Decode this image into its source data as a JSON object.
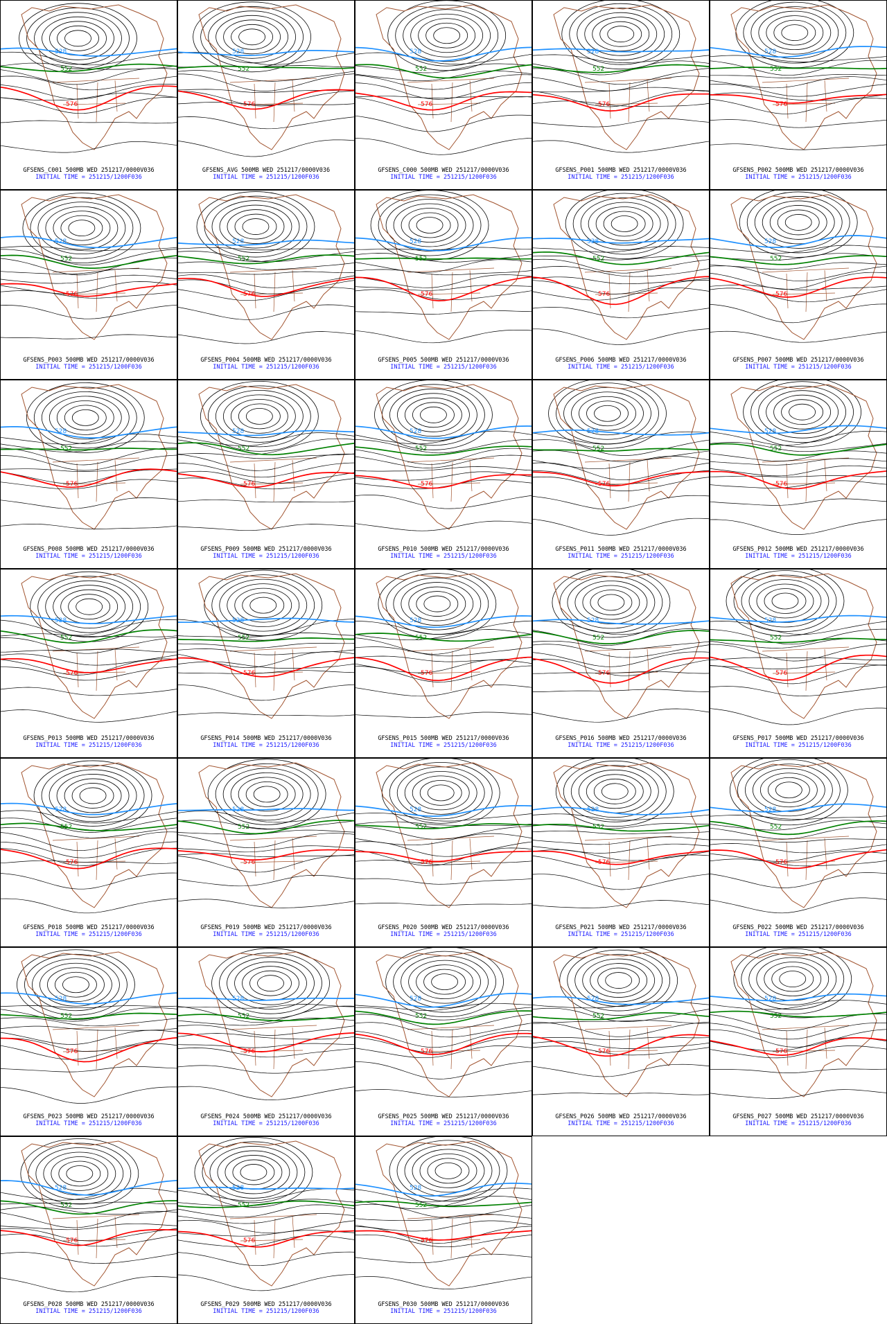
{
  "panels": [
    {
      "line1": "GFSENS_C001 500MB WED 251217/0000V036",
      "line2": "INITIAL TIME = 251215/1200F036"
    },
    {
      "line1": "GFSENS_AVG 500MB WED 251217/0000V036",
      "line2": "INITIAL TIME = 251215/1200F036"
    },
    {
      "line1": "GFSENS_C000 500MB WED 251217/0000V036",
      "line2": "INITIAL TIME = 251215/1200F036"
    },
    {
      "line1": "GFSENS_P001 500MB WED 251217/0000V036",
      "line2": "INITIAL TIME = 251215/1200F036"
    },
    {
      "line1": "GFSENS_P002 500MB WED 251217/0000V036",
      "line2": "INITIAL TIME = 251215/1200F036"
    },
    {
      "line1": "GFSENS_P003 500MB WED 251217/0000V036",
      "line2": "INITIAL TIME = 251215/1200F036"
    },
    {
      "line1": "GFSENS_P004 500MB WED 251217/0000V036",
      "line2": "INITIAL TIME = 251215/1200F036"
    },
    {
      "line1": "GFSENS_P005 500MB WED 251217/0000V036",
      "line2": "INITIAL TIME = 251215/1200F036"
    },
    {
      "line1": "GFSENS_P006 500MB WED 251217/0000V036",
      "line2": "INITIAL TIME = 251215/1200F036"
    },
    {
      "line1": "GFSENS_P007 500MB WED 251217/0000V036",
      "line2": "INITIAL TIME = 251215/1200F036"
    },
    {
      "line1": "GFSENS_P008 500MB WED 251217/0000V036",
      "line2": "INITIAL TIME = 251215/1200F036"
    },
    {
      "line1": "GFSENS_P009 500MB WED 251217/0000V036",
      "line2": "INITIAL TIME = 251215/1200F036"
    },
    {
      "line1": "GFSENS_P010 500MB WED 251217/0000V036",
      "line2": "INITIAL TIME = 251215/1200F036"
    },
    {
      "line1": "GFSENS_P011 500MB WED 251217/0000V036",
      "line2": "INITIAL TIME = 251215/1200F036"
    },
    {
      "line1": "GFSENS_P012 500MB WED 251217/0000V036",
      "line2": "INITIAL TIME = 251215/1200F036"
    },
    {
      "line1": "GFSENS_P013 500MB WED 251217/0000V036",
      "line2": "INITIAL TIME = 251215/1200F036"
    },
    {
      "line1": "GFSENS_P014 500MB WED 251217/0000V036",
      "line2": "INITIAL TIME = 251215/1200F036"
    },
    {
      "line1": "GFSENS_P015 500MB WED 251217/0000V036",
      "line2": "INITIAL TIME = 251215/1200F036"
    },
    {
      "line1": "GFSENS_P016 500MB WED 251217/0000V036",
      "line2": "INITIAL TIME = 251215/1200F036"
    },
    {
      "line1": "GFSENS_P017 500MB WED 251217/0000V036",
      "line2": "INITIAL TIME = 251215/1200F036"
    },
    {
      "line1": "GFSENS_P018 500MB WED 251217/0000V036",
      "line2": "INITIAL TIME = 251215/1200F036"
    },
    {
      "line1": "GFSENS_P019 500MB WED 251217/0000V036",
      "line2": "INITIAL TIME = 251215/1200F036"
    },
    {
      "line1": "GFSENS_P020 500MB WED 251217/0000V036",
      "line2": "INITIAL TIME = 251215/1200F036"
    },
    {
      "line1": "GFSENS_P021 500MB WED 251217/0000V036",
      "line2": "INITIAL TIME = 251215/1200F036"
    },
    {
      "line1": "GFSENS_P022 500MB WED 251217/0000V036",
      "line2": "INITIAL TIME = 251215/1200F036"
    },
    {
      "line1": "GFSENS_P023 500MB WED 251217/0000V036",
      "line2": "INITIAL TIME = 251215/1200F036"
    },
    {
      "line1": "GFSENS_P024 500MB WED 251217/0000V036",
      "line2": "INITIAL TIME = 251215/1200F036"
    },
    {
      "line1": "GFSENS_P025 500MB WED 251217/0000V036",
      "line2": "INITIAL TIME = 251215/1200F036"
    },
    {
      "line1": "GFSENS_P026 500MB WED 251217/0000V036",
      "line2": "INITIAL TIME = 251215/1200F036"
    },
    {
      "line1": "GFSENS_P027 500MB WED 251217/0000V036",
      "line2": "INITIAL TIME = 251215/1200F036"
    },
    {
      "line1": "GFSENS_P028 500MB WED 251217/0000V036",
      "line2": "INITIAL TIME = 251215/1200F036"
    },
    {
      "line1": "GFSENS_P029 500MB WED 251217/0000V036",
      "line2": "INITIAL TIME = 251215/1200F036"
    },
    {
      "line1": "GFSENS_P030 500MB WED 251217/0000V036",
      "line2": "INITIAL TIME = 251215/1200F036"
    }
  ],
  "contour_labels": {
    "blue": "528",
    "green": "552",
    "red": "576"
  },
  "colors": {
    "coastline": "#a0522d",
    "contour": "#000000",
    "contour_528": "#1e90ff",
    "contour_552": "#008000",
    "contour_576": "#ff0000",
    "caption_line1": "#000000",
    "caption_line2": "#1a1aff"
  }
}
